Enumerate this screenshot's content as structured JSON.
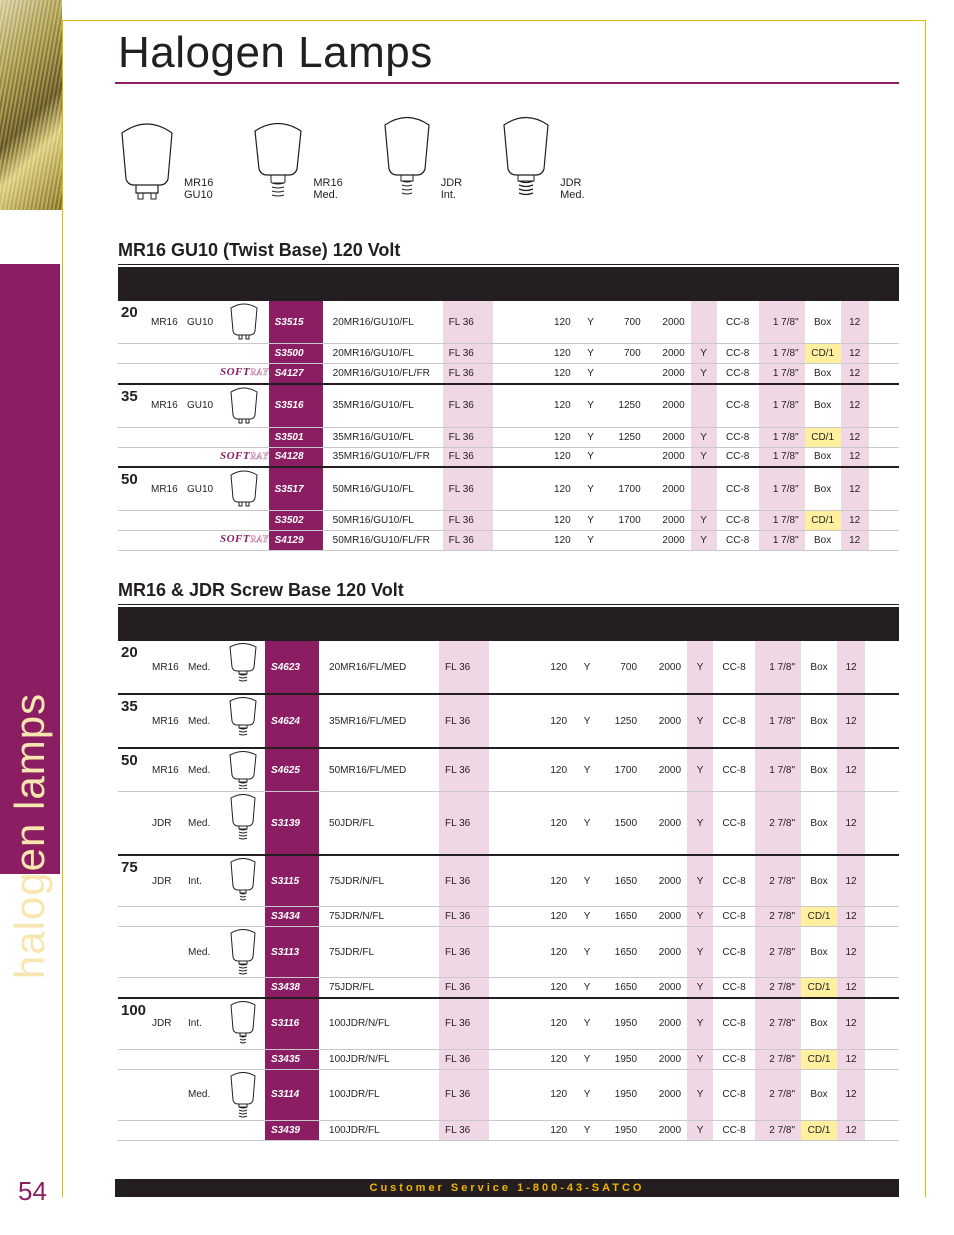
{
  "colors": {
    "brand_purple": "#8b1e63",
    "purple_tint": "#efd7e6",
    "yellow_hl": "#fff0a0",
    "rule_gold": "#e5b800",
    "sidebar_text": "#f8e6b0",
    "footer_text": "#f3b300",
    "black": "#231f20"
  },
  "page_title": "Halogen Lamps",
  "sidebar_label": "halogen lamps",
  "page_number": "54",
  "footer": "Customer Service 1-800-43-SATCO",
  "diagrams": [
    {
      "label_top": "MR16",
      "label_bot": "GU10"
    },
    {
      "label_top": "MR16",
      "label_bot": "Med."
    },
    {
      "label_top": "JDR",
      "label_bot": "Int."
    },
    {
      "label_top": "JDR",
      "label_bot": "Med."
    }
  ],
  "section1_title": "MR16 GU10 (Twist Base) 120 Volt",
  "section2_title": "MR16 & JDR Screw Base 120 Volt",
  "softray": {
    "a": "SOFT",
    "b": "RAY"
  },
  "s1": [
    {
      "grp": "start",
      "watt": "20",
      "type": "MR16",
      "base": "GU10",
      "icon": "gu10",
      "item": "S3515",
      "abbr": "20MR16/GU10/FL",
      "beam": "FL 36",
      "volt": "120",
      "lens": "Y",
      "cbcp": "700",
      "hrs": "2000",
      "eb": "",
      "fil": "CC-8",
      "mol": "1 7/8\"",
      "pack": "Box",
      "hl": false,
      "qty": "12"
    },
    {
      "grp": "",
      "watt": "",
      "type": "",
      "base": "",
      "icon": "",
      "item": "S3500",
      "abbr": "20MR16/GU10/FL",
      "beam": "FL 36",
      "volt": "120",
      "lens": "Y",
      "cbcp": "700",
      "hrs": "2000",
      "eb": "Y",
      "fil": "CC-8",
      "mol": "1 7/8\"",
      "pack": "CD/1",
      "hl": true,
      "qty": "12"
    },
    {
      "grp": "gap",
      "watt": "",
      "type": "",
      "base": "",
      "icon": "softray",
      "item": "S4127",
      "abbr": "20MR16/GU10/FL/FR",
      "beam": "FL 36",
      "volt": "120",
      "lens": "Y",
      "cbcp": "",
      "hrs": "2000",
      "eb": "Y",
      "fil": "CC-8",
      "mol": "1 7/8\"",
      "pack": "Box",
      "hl": false,
      "qty": "12"
    },
    {
      "grp": "start",
      "watt": "35",
      "type": "MR16",
      "base": "GU10",
      "icon": "gu10",
      "item": "S3516",
      "abbr": "35MR16/GU10/FL",
      "beam": "FL 36",
      "volt": "120",
      "lens": "Y",
      "cbcp": "1250",
      "hrs": "2000",
      "eb": "",
      "fil": "CC-8",
      "mol": "1 7/8\"",
      "pack": "Box",
      "hl": false,
      "qty": "12"
    },
    {
      "grp": "",
      "watt": "",
      "type": "",
      "base": "",
      "icon": "",
      "item": "S3501",
      "abbr": "35MR16/GU10/FL",
      "beam": "FL 36",
      "volt": "120",
      "lens": "Y",
      "cbcp": "1250",
      "hrs": "2000",
      "eb": "Y",
      "fil": "CC-8",
      "mol": "1 7/8\"",
      "pack": "CD/1",
      "hl": true,
      "qty": "12"
    },
    {
      "grp": "gap",
      "watt": "",
      "type": "",
      "base": "",
      "icon": "softray",
      "item": "S4128",
      "abbr": "35MR16/GU10/FL/FR",
      "beam": "FL 36",
      "volt": "120",
      "lens": "Y",
      "cbcp": "",
      "hrs": "2000",
      "eb": "Y",
      "fil": "CC-8",
      "mol": "1 7/8\"",
      "pack": "Box",
      "hl": false,
      "qty": "12"
    },
    {
      "grp": "start",
      "watt": "50",
      "type": "MR16",
      "base": "GU10",
      "icon": "gu10",
      "item": "S3517",
      "abbr": "50MR16/GU10/FL",
      "beam": "FL 36",
      "volt": "120",
      "lens": "Y",
      "cbcp": "1700",
      "hrs": "2000",
      "eb": "",
      "fil": "CC-8",
      "mol": "1 7/8\"",
      "pack": "Box",
      "hl": false,
      "qty": "12"
    },
    {
      "grp": "",
      "watt": "",
      "type": "",
      "base": "",
      "icon": "",
      "item": "S3502",
      "abbr": "50MR16/GU10/FL",
      "beam": "FL 36",
      "volt": "120",
      "lens": "Y",
      "cbcp": "1700",
      "hrs": "2000",
      "eb": "Y",
      "fil": "CC-8",
      "mol": "1 7/8\"",
      "pack": "CD/1",
      "hl": true,
      "qty": "12"
    },
    {
      "grp": "",
      "watt": "",
      "type": "",
      "base": "",
      "icon": "softray",
      "item": "S4129",
      "abbr": "50MR16/GU10/FL/FR",
      "beam": "FL 36",
      "volt": "120",
      "lens": "Y",
      "cbcp": "",
      "hrs": "2000",
      "eb": "Y",
      "fil": "CC-8",
      "mol": "1 7/8\"",
      "pack": "Box",
      "hl": false,
      "qty": "12"
    }
  ],
  "s2": [
    {
      "grp": "start",
      "watt": "20",
      "type": "MR16",
      "base": "Med.",
      "icon": "mr16med-tall",
      "item": "S4623",
      "abbr": "20MR16/FL/MED",
      "beam": "FL 36",
      "volt": "120",
      "lens": "Y",
      "cbcp": "700",
      "hrs": "2000",
      "eb": "Y",
      "fil": "CC-8",
      "mol": "1 7/8\"",
      "pack": "Box",
      "hl": false,
      "qty": "12"
    },
    {
      "grp": "start",
      "watt": "35",
      "type": "MR16",
      "base": "Med.",
      "icon": "mr16med-tall",
      "item": "S4624",
      "abbr": "35MR16/FL/MED",
      "beam": "FL 36",
      "volt": "120",
      "lens": "Y",
      "cbcp": "1250",
      "hrs": "2000",
      "eb": "Y",
      "fil": "CC-8",
      "mol": "1 7/8\"",
      "pack": "Box",
      "hl": false,
      "qty": "12"
    },
    {
      "grp": "start",
      "watt": "50",
      "type": "MR16",
      "base": "Med.",
      "icon": "mr16med",
      "item": "S4625",
      "abbr": "50MR16/FL/MED",
      "beam": "FL 36",
      "volt": "120",
      "lens": "Y",
      "cbcp": "1700",
      "hrs": "2000",
      "eb": "Y",
      "fil": "CC-8",
      "mol": "1 7/8\"",
      "pack": "Box",
      "hl": false,
      "qty": "12"
    },
    {
      "grp": "gap",
      "watt": "",
      "type": "JDR",
      "base": "Med.",
      "icon": "jdrmed-tall",
      "item": "S3139",
      "abbr": "50JDR/FL",
      "beam": "FL 36",
      "volt": "120",
      "lens": "Y",
      "cbcp": "1500",
      "hrs": "2000",
      "eb": "Y",
      "fil": "CC-8",
      "mol": "2 7/8\"",
      "pack": "Box",
      "hl": false,
      "qty": "12"
    },
    {
      "grp": "start",
      "watt": "75",
      "type": "JDR",
      "base": "Int.",
      "icon": "jdrint",
      "item": "S3115",
      "abbr": "75JDR/N/FL",
      "beam": "FL 36",
      "volt": "120",
      "lens": "Y",
      "cbcp": "1650",
      "hrs": "2000",
      "eb": "Y",
      "fil": "CC-8",
      "mol": "2 7/8\"",
      "pack": "Box",
      "hl": false,
      "qty": "12"
    },
    {
      "grp": "",
      "watt": "",
      "type": "",
      "base": "",
      "icon": "",
      "item": "S3434",
      "abbr": "75JDR/N/FL",
      "beam": "FL 36",
      "volt": "120",
      "lens": "Y",
      "cbcp": "1650",
      "hrs": "2000",
      "eb": "Y",
      "fil": "CC-8",
      "mol": "2 7/8\"",
      "pack": "CD/1",
      "hl": true,
      "qty": "12"
    },
    {
      "grp": "gap",
      "watt": "",
      "type": "",
      "base": "Med.",
      "icon": "jdrmed",
      "item": "S3113",
      "abbr": "75JDR/FL",
      "beam": "FL 36",
      "volt": "120",
      "lens": "Y",
      "cbcp": "1650",
      "hrs": "2000",
      "eb": "Y",
      "fil": "CC-8",
      "mol": "2 7/8\"",
      "pack": "Box",
      "hl": false,
      "qty": "12"
    },
    {
      "grp": "",
      "watt": "",
      "type": "",
      "base": "",
      "icon": "",
      "item": "S3438",
      "abbr": "75JDR/FL",
      "beam": "FL 36",
      "volt": "120",
      "lens": "Y",
      "cbcp": "1650",
      "hrs": "2000",
      "eb": "Y",
      "fil": "CC-8",
      "mol": "2 7/8\"",
      "pack": "CD/1",
      "hl": true,
      "qty": "12"
    },
    {
      "grp": "start",
      "watt": "100",
      "type": "JDR",
      "base": "Int.",
      "icon": "jdrint",
      "item": "S3116",
      "abbr": "100JDR/N/FL",
      "beam": "FL 36",
      "volt": "120",
      "lens": "Y",
      "cbcp": "1950",
      "hrs": "2000",
      "eb": "Y",
      "fil": "CC-8",
      "mol": "2 7/8\"",
      "pack": "Box",
      "hl": false,
      "qty": "12"
    },
    {
      "grp": "",
      "watt": "",
      "type": "",
      "base": "",
      "icon": "",
      "item": "S3435",
      "abbr": "100JDR/N/FL",
      "beam": "FL 36",
      "volt": "120",
      "lens": "Y",
      "cbcp": "1950",
      "hrs": "2000",
      "eb": "Y",
      "fil": "CC-8",
      "mol": "2 7/8\"",
      "pack": "CD/1",
      "hl": true,
      "qty": "12"
    },
    {
      "grp": "gap",
      "watt": "",
      "type": "",
      "base": "Med.",
      "icon": "jdrmed",
      "item": "S3114",
      "abbr": "100JDR/FL",
      "beam": "FL 36",
      "volt": "120",
      "lens": "Y",
      "cbcp": "1950",
      "hrs": "2000",
      "eb": "Y",
      "fil": "CC-8",
      "mol": "2 7/8\"",
      "pack": "Box",
      "hl": false,
      "qty": "12"
    },
    {
      "grp": "",
      "watt": "",
      "type": "",
      "base": "",
      "icon": "",
      "item": "S3439",
      "abbr": "100JDR/FL",
      "beam": "FL 36",
      "volt": "120",
      "lens": "Y",
      "cbcp": "1950",
      "hrs": "2000",
      "eb": "Y",
      "fil": "CC-8",
      "mol": "2 7/8\"",
      "pack": "CD/1",
      "hl": true,
      "qty": "12"
    }
  ]
}
